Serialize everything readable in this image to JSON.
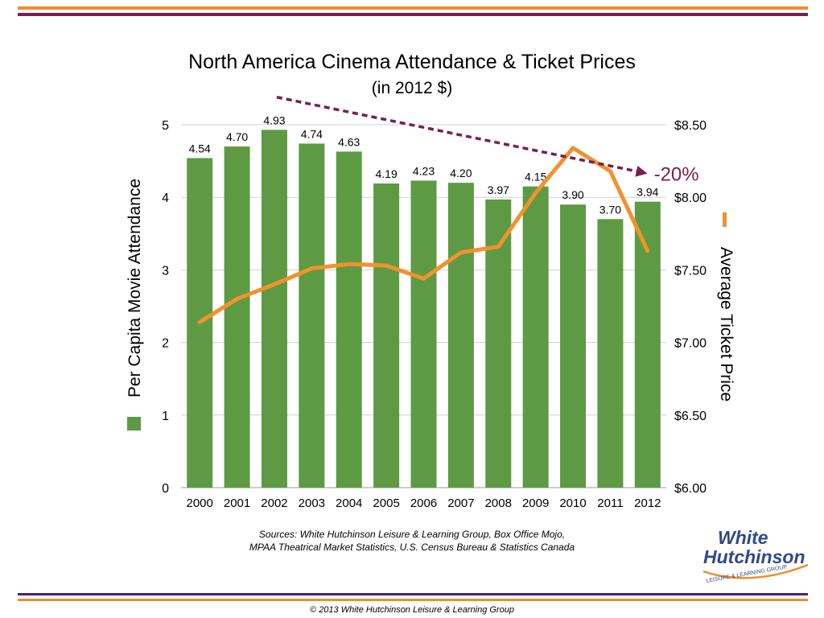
{
  "colors": {
    "orange": "#f08c2a",
    "purple": "#7a1f56",
    "indigo": "#4b2170",
    "bar_green": "#5e9a44",
    "price_line": "#f0922e",
    "trend_dashed": "#7a1f4f",
    "logo_blue": "#2f4a88"
  },
  "header": {
    "title": "North America Cinema Attendance & Ticket Prices",
    "subtitle": "(in 2012 $)"
  },
  "sources": {
    "line1": "Sources:  White Hutchinson Leisure & Learning Group, Box Office Mojo,",
    "line2": "MPAA Theatrical Market Statistics, U.S. Census Bureau & Statistics Canada"
  },
  "footer": {
    "copyright": "© 2013 White Hutchinson Leisure & Learning Group"
  },
  "logo": {
    "line1": "White",
    "line2": "Hutchinson",
    "tagline": "LEISURE & LEARNING GROUP"
  },
  "chart_data": {
    "type": "bar",
    "title": "North America Cinema Attendance & Ticket Prices",
    "subtitle": "(in 2012 $)",
    "categories": [
      "2000",
      "2001",
      "2002",
      "2003",
      "2004",
      "2005",
      "2006",
      "2007",
      "2008",
      "2009",
      "2010",
      "2011",
      "2012"
    ],
    "ylabel": "Per Capita Movie Attendance",
    "ylabel_right": "Average Ticket Price",
    "ylim": [
      0,
      5
    ],
    "ylim_right": [
      6.0,
      8.5
    ],
    "y_ticks": [
      "0",
      "1",
      "2",
      "3",
      "4",
      "5"
    ],
    "y_right_ticks": [
      "$6.00",
      "$6.50",
      "$7.00",
      "$7.50",
      "$8.00",
      "$8.50"
    ],
    "grid": true,
    "series": [
      {
        "type": "bar",
        "axis": "left",
        "values": [
          4.54,
          4.7,
          4.93,
          4.74,
          4.63,
          4.19,
          4.23,
          4.2,
          3.97,
          4.15,
          3.9,
          3.7,
          3.94
        ],
        "labels": [
          "4.54",
          "4.70",
          "4.93",
          "4.74",
          "4.63",
          "4.19",
          "4.23",
          "4.20",
          "3.97",
          "4.15",
          "3.90",
          "3.70",
          "3.94"
        ]
      },
      {
        "type": "line",
        "axis": "right",
        "values": [
          7.14,
          7.3,
          7.4,
          7.51,
          7.54,
          7.53,
          7.44,
          7.62,
          7.66,
          8.03,
          8.34,
          8.18,
          7.63
        ]
      }
    ],
    "annotations": [
      {
        "type": "dashed-arrow",
        "from": {
          "x": "2002",
          "y": 5.38
        },
        "to": {
          "x": "2012",
          "y": 4.35
        },
        "text": "-20%"
      }
    ]
  }
}
